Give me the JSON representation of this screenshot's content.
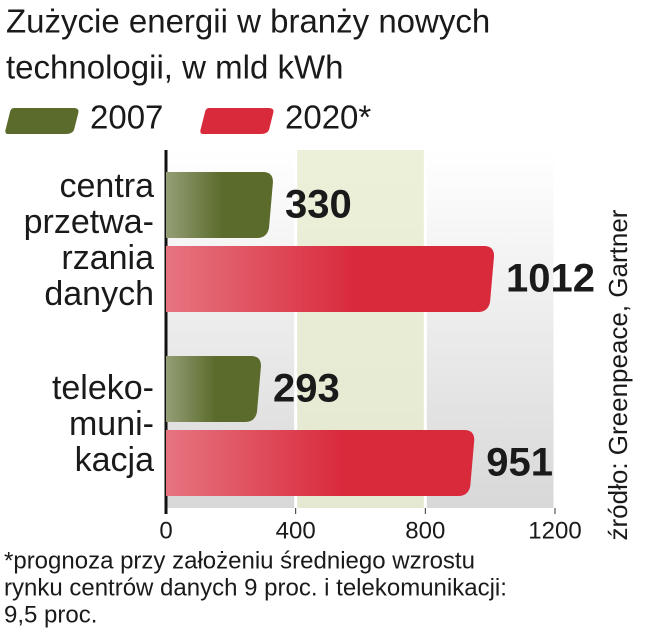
{
  "chart_data": {
    "type": "bar",
    "orientation": "horizontal",
    "title": [
      "Zużycie energii w branży nowych",
      "technologii, w mld kWh"
    ],
    "categories": [
      [
        "centra",
        "przetwa-",
        "rzania",
        "danych"
      ],
      [
        "teleko-",
        "muni-",
        "kacja"
      ]
    ],
    "series": [
      {
        "name": "2007",
        "color": "#5b6b2c",
        "values": [
          330,
          293
        ]
      },
      {
        "name": "2020*",
        "color": "#d92a3c",
        "values": [
          1012,
          951
        ]
      }
    ],
    "xlim": [
      0,
      1200
    ],
    "xticks": [
      0,
      400,
      800,
      1200
    ],
    "grid": true,
    "source": "źródło: Greenpeace, Gartner",
    "footnote": [
      "*prognoza przy założeniu średniego wzrostu",
      "rynku centrów danych 9 proc. i telekomunikacji:",
      "9,5 proc."
    ]
  }
}
